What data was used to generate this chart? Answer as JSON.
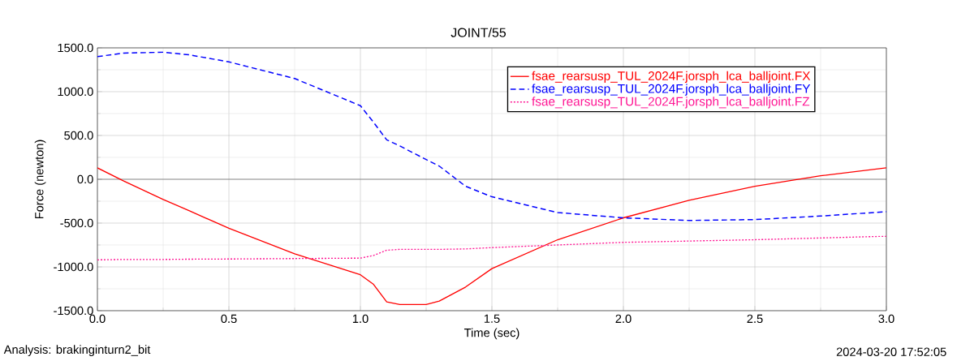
{
  "chart_data": {
    "type": "line",
    "title": "JOINT/55",
    "xlabel": "Time (sec)",
    "ylabel": "Force (newton)",
    "x": [
      0,
      0.1,
      0.25,
      0.35,
      0.5,
      0.75,
      1.0,
      1.05,
      1.1,
      1.15,
      1.25,
      1.3,
      1.4,
      1.5,
      1.75,
      2.0,
      2.25,
      2.5,
      2.75,
      3.0
    ],
    "series": [
      {
        "name": "fsae_rearsusp_TUL_2024F.jorsph_lca_balljoint.FX",
        "color": "#ff0000",
        "line_style": "solid",
        "values": [
          130,
          -20,
          -230,
          -360,
          -560,
          -850,
          -1090,
          -1200,
          -1400,
          -1430,
          -1430,
          -1390,
          -1230,
          -1020,
          -690,
          -440,
          -240,
          -80,
          40,
          130
        ]
      },
      {
        "name": "fsae_rearsusp_TUL_2024F.jorsph_lca_balljoint.FY",
        "color": "#0000ff",
        "line_style": "dashed",
        "values": [
          1400,
          1440,
          1450,
          1420,
          1340,
          1150,
          840,
          650,
          450,
          380,
          225,
          150,
          -80,
          -200,
          -380,
          -440,
          -470,
          -460,
          -420,
          -370
        ]
      },
      {
        "name": "fsae_rearsusp_TUL_2024F.jorsph_lca_balljoint.FZ",
        "color": "#ff1493",
        "line_style": "dotted",
        "values": [
          -920,
          -915,
          -915,
          -912,
          -910,
          -905,
          -900,
          -870,
          -810,
          -800,
          -800,
          -800,
          -795,
          -780,
          -750,
          -720,
          -705,
          -690,
          -670,
          -650
        ]
      }
    ],
    "xlim": [
      0,
      3
    ],
    "ylim": [
      -1500,
      1500
    ],
    "xticks": [
      {
        "value": 0,
        "label": "0.0"
      },
      {
        "value": 0.5,
        "label": "0.5"
      },
      {
        "value": 1,
        "label": "1.0"
      },
      {
        "value": 1.5,
        "label": "1.5"
      },
      {
        "value": 2,
        "label": "2.0"
      },
      {
        "value": 2.5,
        "label": "2.5"
      },
      {
        "value": 3,
        "label": "3.0"
      }
    ],
    "yticks": [
      {
        "value": -1500,
        "label": "-1500.0"
      },
      {
        "value": -1000,
        "label": "-1000.0"
      },
      {
        "value": -500,
        "label": "-500.0"
      },
      {
        "value": 0,
        "label": "0.0"
      },
      {
        "value": 500,
        "label": "500.0"
      },
      {
        "value": 1000,
        "label": "1000.0"
      },
      {
        "value": 1500,
        "label": "1500.0"
      }
    ],
    "grid": true,
    "legend": "top right",
    "marker": "none",
    "annotations": [
      "Analysis:  brakinginturn2_bit",
      "2024-03-20 17:52:05"
    ]
  }
}
